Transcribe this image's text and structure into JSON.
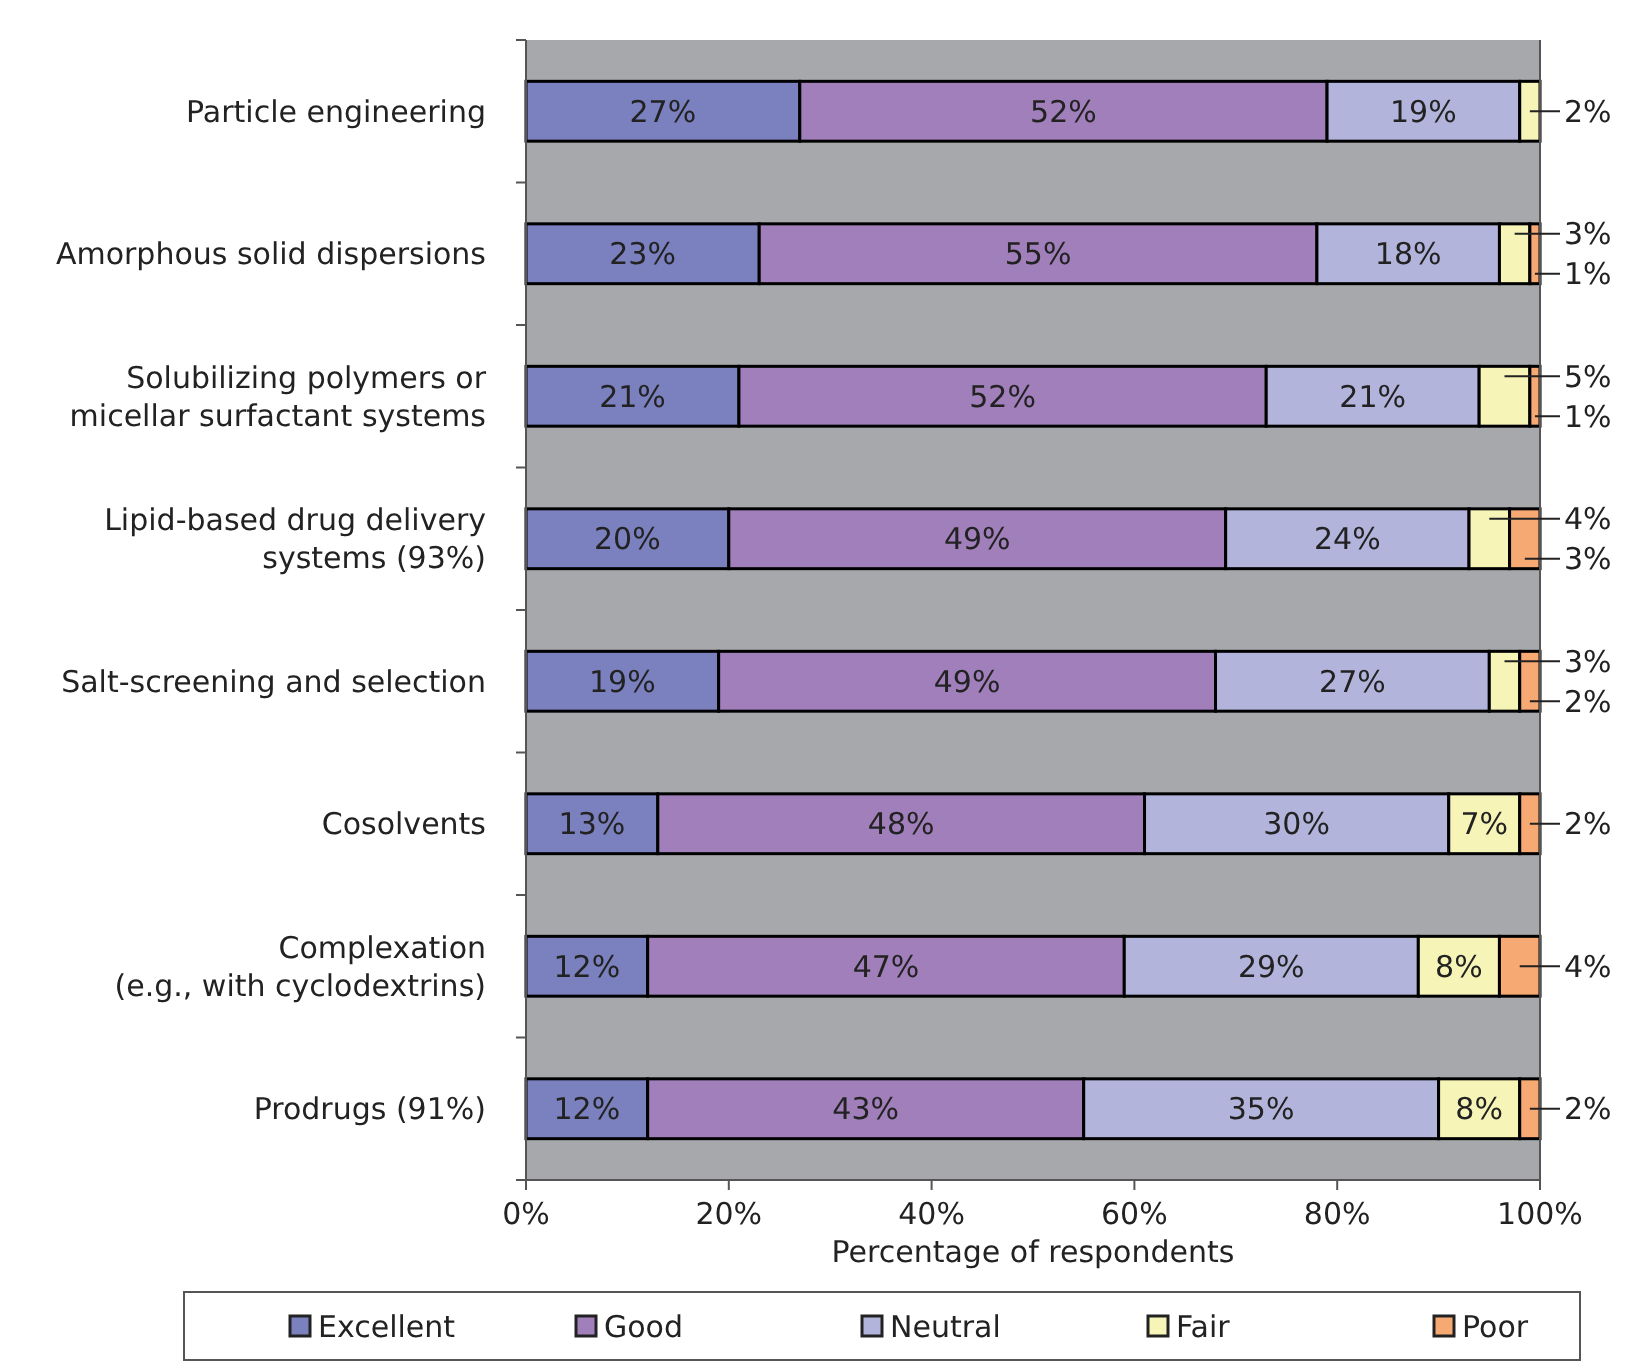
{
  "chart_data": {
    "type": "bar",
    "orientation": "horizontal",
    "stacked": true,
    "xlabel": "Percentage of respondents",
    "categories": [
      "Particle engineering",
      "Amorphous solid dispersions",
      "Solubilizing polymers or\nmicellar surfactant systems",
      "Lipid-based drug delivery\nsystems (93%)",
      "Salt-screening and selection",
      "Cosolvents",
      "Complexation\n(e.g., with cyclodextrins)",
      "Prodrugs (91%)"
    ],
    "series": [
      {
        "name": "Excellent",
        "color": "#7b80bf",
        "values": [
          27,
          23,
          21,
          20,
          19,
          13,
          12,
          12
        ],
        "value_labels": [
          "27%",
          "23%",
          "21%",
          "20%",
          "19%",
          "13%",
          "12%",
          "12%"
        ]
      },
      {
        "name": "Good",
        "color": "#a07fbb",
        "values": [
          52,
          55,
          52,
          49,
          49,
          48,
          47,
          43
        ],
        "value_labels": [
          "52%",
          "55%",
          "52%",
          "49%",
          "49%",
          "48%",
          "47%",
          "43%"
        ]
      },
      {
        "name": "Neutral",
        "color": "#b3b4dc",
        "values": [
          19,
          18,
          21,
          24,
          27,
          30,
          29,
          35
        ],
        "value_labels": [
          "19%",
          "18%",
          "21%",
          "24%",
          "27%",
          "30%",
          "29%",
          "35%"
        ]
      },
      {
        "name": "Fair",
        "color": "#f7f4b8",
        "values": [
          2,
          3,
          5,
          4,
          3,
          7,
          8,
          8
        ],
        "value_labels": [
          "2%",
          "3%",
          "5%",
          "4%",
          "3%",
          "7%",
          "8%",
          "8%"
        ]
      },
      {
        "name": "Poor",
        "color": "#f6a972",
        "values": [
          0,
          1,
          1,
          3,
          2,
          2,
          4,
          2
        ],
        "value_labels": [
          null,
          "1%",
          "1%",
          "3%",
          "2%",
          "2%",
          "4%",
          "2%"
        ]
      }
    ],
    "xlim": [
      0,
      100
    ],
    "xticks": [
      {
        "value": 0,
        "label": "0%"
      },
      {
        "value": 20,
        "label": "20%"
      },
      {
        "value": 40,
        "label": "40%"
      },
      {
        "value": 60,
        "label": "60%"
      },
      {
        "value": 80,
        "label": "80%"
      },
      {
        "value": 100,
        "label": "100%"
      }
    ],
    "grid": false,
    "legend": "bottom"
  }
}
